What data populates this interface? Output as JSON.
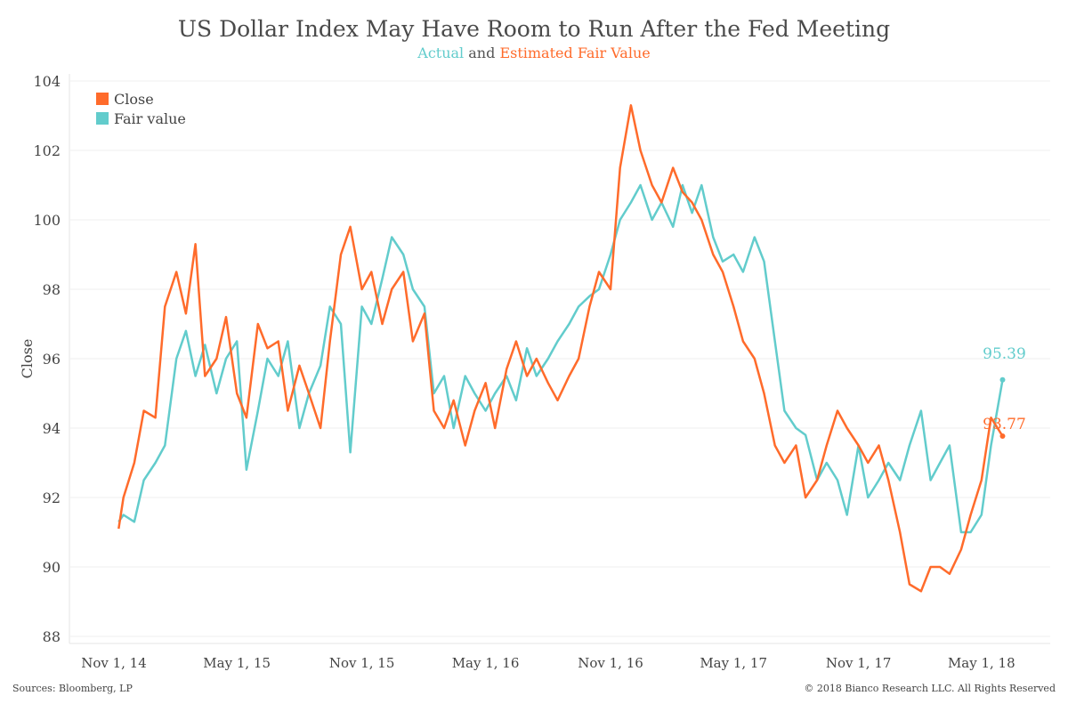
{
  "chart_data": {
    "type": "line",
    "title": "US Dollar Index May Have Room to Run After the Fed Meeting",
    "subtitle": {
      "part1": "Actual",
      "part2": " and ",
      "part3": "Estimated Fair Value"
    },
    "ylabel": "Close",
    "ylim": [
      88,
      104
    ],
    "yticks": [
      88,
      90,
      92,
      94,
      96,
      98,
      100,
      102,
      104
    ],
    "xticks": [
      {
        "date": "2014-11-01",
        "label": "Nov 1, 14"
      },
      {
        "date": "2015-05-01",
        "label": "May 1, 15"
      },
      {
        "date": "2015-11-01",
        "label": "Nov 1, 15"
      },
      {
        "date": "2016-05-01",
        "label": "May 1, 16"
      },
      {
        "date": "2016-11-01",
        "label": "Nov 1, 16"
      },
      {
        "date": "2017-05-01",
        "label": "May 1, 17"
      },
      {
        "date": "2017-11-01",
        "label": "Nov 1, 17"
      },
      {
        "date": "2018-05-01",
        "label": "May 1, 18"
      }
    ],
    "grid": true,
    "legend_position": "top-left",
    "colors": {
      "close": "#FF6B2B",
      "fair": "#62CCCC"
    },
    "dates": [
      "2014-11-08",
      "2014-11-15",
      "2014-12-01",
      "2014-12-15",
      "2015-01-01",
      "2015-01-15",
      "2015-02-01",
      "2015-02-15",
      "2015-03-01",
      "2015-03-15",
      "2015-04-01",
      "2015-04-15",
      "2015-05-01",
      "2015-05-15",
      "2015-06-01",
      "2015-06-15",
      "2015-07-01",
      "2015-07-15",
      "2015-08-01",
      "2015-08-15",
      "2015-09-01",
      "2015-09-15",
      "2015-10-01",
      "2015-10-15",
      "2015-11-01",
      "2015-11-15",
      "2015-12-01",
      "2015-12-15",
      "2016-01-01",
      "2016-01-15",
      "2016-02-01",
      "2016-02-15",
      "2016-03-01",
      "2016-03-15",
      "2016-04-01",
      "2016-04-15",
      "2016-05-01",
      "2016-05-15",
      "2016-06-01",
      "2016-06-15",
      "2016-07-01",
      "2016-07-15",
      "2016-08-01",
      "2016-08-15",
      "2016-09-01",
      "2016-09-15",
      "2016-10-01",
      "2016-10-15",
      "2016-11-01",
      "2016-11-15",
      "2016-12-01",
      "2016-12-15",
      "2017-01-01",
      "2017-01-15",
      "2017-02-01",
      "2017-02-15",
      "2017-03-01",
      "2017-03-15",
      "2017-04-01",
      "2017-04-15",
      "2017-05-01",
      "2017-05-15",
      "2017-06-01",
      "2017-06-15",
      "2017-07-01",
      "2017-07-15",
      "2017-08-01",
      "2017-08-15",
      "2017-09-01",
      "2017-09-15",
      "2017-10-01",
      "2017-10-15",
      "2017-11-01",
      "2017-11-15",
      "2017-12-01",
      "2017-12-15",
      "2018-01-01",
      "2018-01-15",
      "2018-02-01",
      "2018-02-15",
      "2018-03-01",
      "2018-03-15",
      "2018-04-01",
      "2018-04-15",
      "2018-05-01",
      "2018-05-15",
      "2018-06-01"
    ],
    "series": [
      {
        "name": "Close",
        "end_label": "93.77",
        "values": [
          91.1,
          92.0,
          93.0,
          94.5,
          94.3,
          97.5,
          98.5,
          97.3,
          99.3,
          95.5,
          96.0,
          97.2,
          95.0,
          94.3,
          97.0,
          96.3,
          96.5,
          94.5,
          95.8,
          95.0,
          94.0,
          96.5,
          99.0,
          99.8,
          98.0,
          98.5,
          97.0,
          98.0,
          98.5,
          96.5,
          97.3,
          94.5,
          94.0,
          94.8,
          93.5,
          94.5,
          95.3,
          94.0,
          95.7,
          96.5,
          95.5,
          96.0,
          95.3,
          94.8,
          95.5,
          96.0,
          97.5,
          98.5,
          98.0,
          101.5,
          103.3,
          102.0,
          101.0,
          100.5,
          101.5,
          100.8,
          100.5,
          100.0,
          99.0,
          98.5,
          97.5,
          96.5,
          96.0,
          95.0,
          93.5,
          93.0,
          93.5,
          92.0,
          92.5,
          93.5,
          94.5,
          94.0,
          93.5,
          93.0,
          93.5,
          92.5,
          91.0,
          89.5,
          89.3,
          90.0,
          90.0,
          89.8,
          90.5,
          91.5,
          92.5,
          94.3,
          93.77
        ]
      },
      {
        "name": "Fair value",
        "end_label": "95.39",
        "values": [
          91.3,
          91.5,
          91.3,
          92.5,
          93.0,
          93.5,
          96.0,
          96.8,
          95.5,
          96.4,
          95.0,
          96.0,
          96.5,
          92.8,
          94.5,
          96.0,
          95.5,
          96.5,
          94.0,
          95.0,
          95.8,
          97.5,
          97.0,
          93.3,
          97.5,
          97.0,
          98.3,
          99.5,
          99.0,
          98.0,
          97.5,
          95.0,
          95.5,
          94.0,
          95.5,
          95.0,
          94.5,
          95.0,
          95.5,
          94.8,
          96.3,
          95.5,
          96.0,
          96.5,
          97.0,
          97.5,
          97.8,
          98.0,
          99.0,
          100.0,
          100.5,
          101.0,
          100.0,
          100.5,
          99.8,
          101.0,
          100.2,
          101.0,
          99.5,
          98.8,
          99.0,
          98.5,
          99.5,
          98.8,
          96.5,
          94.5,
          94.0,
          93.8,
          92.5,
          93.0,
          92.5,
          91.5,
          93.5,
          92.0,
          92.5,
          93.0,
          92.5,
          93.5,
          94.5,
          92.5,
          93.0,
          93.5,
          91.0,
          91.0,
          91.5,
          93.5,
          95.39
        ]
      }
    ]
  },
  "footer": {
    "source": "Sources: Bloomberg, LP",
    "copyright": "© 2018 Bianco Research LLC. All Rights Reserved"
  }
}
